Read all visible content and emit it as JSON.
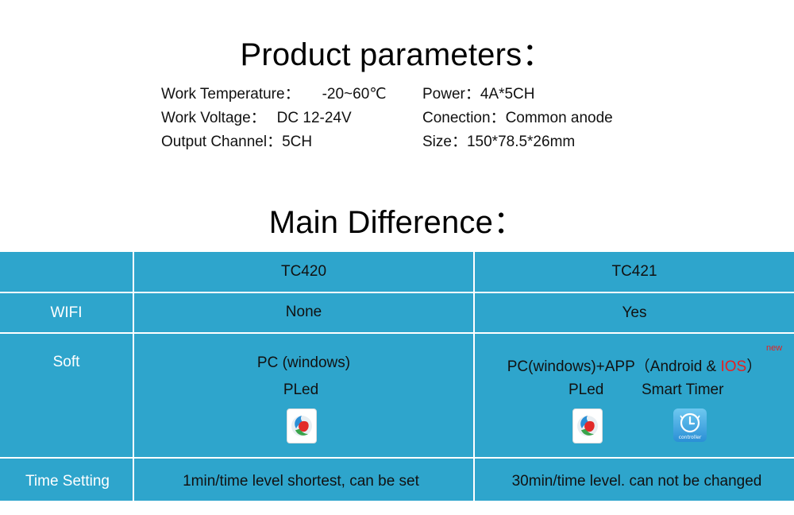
{
  "headings": {
    "params_title": "Product parameters：",
    "diff_title": "Main Difference："
  },
  "params": {
    "left": [
      {
        "label": "Work Temperature：",
        "value": "-20~60℃"
      },
      {
        "label": "Work Voltage：",
        "value": "DC 12-24V"
      },
      {
        "label": "Output Channel：",
        "value": "5CH"
      }
    ],
    "right": [
      {
        "label": "Power：",
        "value": "4A*5CH"
      },
      {
        "label": "Conection：",
        "value": "Common anode"
      },
      {
        "label": "Size：",
        "value": "150*78.5*26mm"
      }
    ]
  },
  "table": {
    "header": {
      "col1": "TC420",
      "col2": "TC421"
    },
    "wifi": {
      "label": "WIFI",
      "col1": "None",
      "col2": "Yes"
    },
    "soft": {
      "label": "Soft",
      "col1_line1": "PC (windows)",
      "col1_line2": "PLed",
      "col2_line1_main": "PC(windows)+APP（Android & ",
      "col2_line1_ios": "IOS",
      "col2_line1_end": "）",
      "col2_new": "new",
      "col2_pled": "PLed",
      "col2_timer": "Smart  Timer",
      "timer_icon_text": "controller"
    },
    "time": {
      "label": "Time Setting",
      "col1": "1min/time level shortest, can be set",
      "col2": "30min/time level. can not be changed"
    }
  },
  "colors": {
    "table_bg": "#2ea5cc",
    "ios_red": "#e62020"
  },
  "icons": {
    "pled": "pled-app-icon",
    "timer": "smart-timer-app-icon"
  }
}
